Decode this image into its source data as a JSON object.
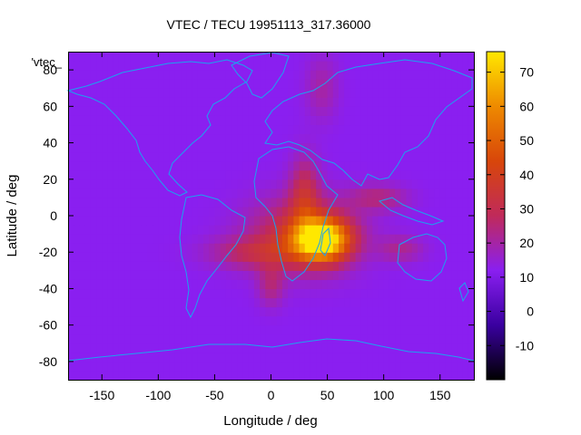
{
  "chart_data": {
    "type": "heatmap",
    "title": "VTEC / TECU 19951113_317.36000",
    "xlabel": "Longitude / deg",
    "ylabel": "Latitude / deg",
    "key_label": "'vtec_",
    "xlim": [
      -180,
      180
    ],
    "ylim": [
      -90,
      90
    ],
    "x_ticks": [
      -150,
      -100,
      -50,
      0,
      50,
      100,
      150
    ],
    "y_ticks": [
      -80,
      -60,
      -40,
      -20,
      0,
      20,
      40,
      60,
      80
    ],
    "colorbar": {
      "range": [
        -20,
        76
      ],
      "ticks": [
        -10,
        0,
        10,
        20,
        30,
        40,
        50,
        60,
        70
      ]
    },
    "background_value": 12,
    "grid": false,
    "colormap_stops": [
      "#000000",
      "#3a00a0",
      "#8a1ff0",
      "#c02a5a",
      "#d8460a",
      "#ee8a00",
      "#ffe800"
    ],
    "peak_regions": [
      {
        "lon": 45,
        "lat": -13,
        "sigma_lon": 17,
        "sigma_lat": 8,
        "amplitude": 62
      },
      {
        "lon": 28,
        "lat": -10,
        "sigma_lon": 32,
        "sigma_lat": 14,
        "amplitude": 22
      },
      {
        "lon": -15,
        "lat": -20,
        "sigma_lon": 28,
        "sigma_lat": 6,
        "amplitude": 14
      },
      {
        "lon": 30,
        "lat": 12,
        "sigma_lon": 9,
        "sigma_lat": 14,
        "amplitude": 18
      },
      {
        "lon": 95,
        "lat": 10,
        "sigma_lon": 18,
        "sigma_lat": 5,
        "amplitude": 12
      },
      {
        "lon": 115,
        "lat": -18,
        "sigma_lon": 14,
        "sigma_lat": 5,
        "amplitude": 10
      },
      {
        "lon": 0,
        "lat": -38,
        "sigma_lon": 8,
        "sigma_lat": 8,
        "amplitude": 11
      },
      {
        "lon": 45,
        "lat": 70,
        "sigma_lon": 10,
        "sigma_lat": 12,
        "amplitude": 8
      }
    ]
  }
}
